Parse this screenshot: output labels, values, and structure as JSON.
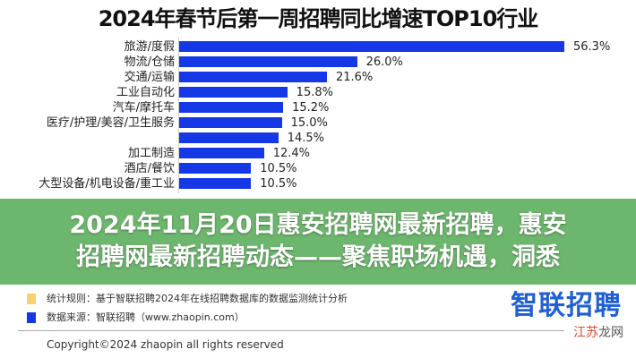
{
  "chart_data": {
    "type": "bar",
    "orientation": "horizontal",
    "title": "2024年春节后第一周招聘同比增速TOP10行业",
    "categories": [
      "旅游/度假",
      "物流/仓储",
      "交通/运输",
      "工业自动化",
      "汽车/摩托车",
      "医疗/护理/美容/卫生服务",
      "",
      "加工制造",
      "酒店/餐饮",
      "大型设备/机电设备/重工业"
    ],
    "values": [
      56.3,
      26.0,
      21.6,
      15.8,
      15.2,
      15.0,
      14.5,
      12.4,
      10.5,
      10.5
    ],
    "value_labels": [
      "56.3%",
      "26.0%",
      "21.6%",
      "15.8%",
      "15.2%",
      "15.0%",
      "14.5%",
      "12.4%",
      "10.5%",
      "10.5%"
    ],
    "unit": "%",
    "xlim": [
      0,
      60
    ],
    "grid": false,
    "bar_color": "#1438e6"
  },
  "headline": {
    "line1": "2024年11月20日惠安招聘网最新招聘，惠安",
    "line2": "招聘网最新招聘动态——聚焦职场机遇，洞悉"
  },
  "notes": {
    "rule": "统计规则：基于智联招聘2024年在线招聘数据库的数据监测统计分析",
    "rule_color": "#f8d270",
    "source": "数据来源：智联招聘（www.zhaopin.com）",
    "source_color": "#1438e6"
  },
  "logo": "智联招聘",
  "copyright": "Copyright©2024 zhaopin all rights reserved",
  "watermark": {
    "part1": "江苏",
    "part2": "龙网"
  }
}
